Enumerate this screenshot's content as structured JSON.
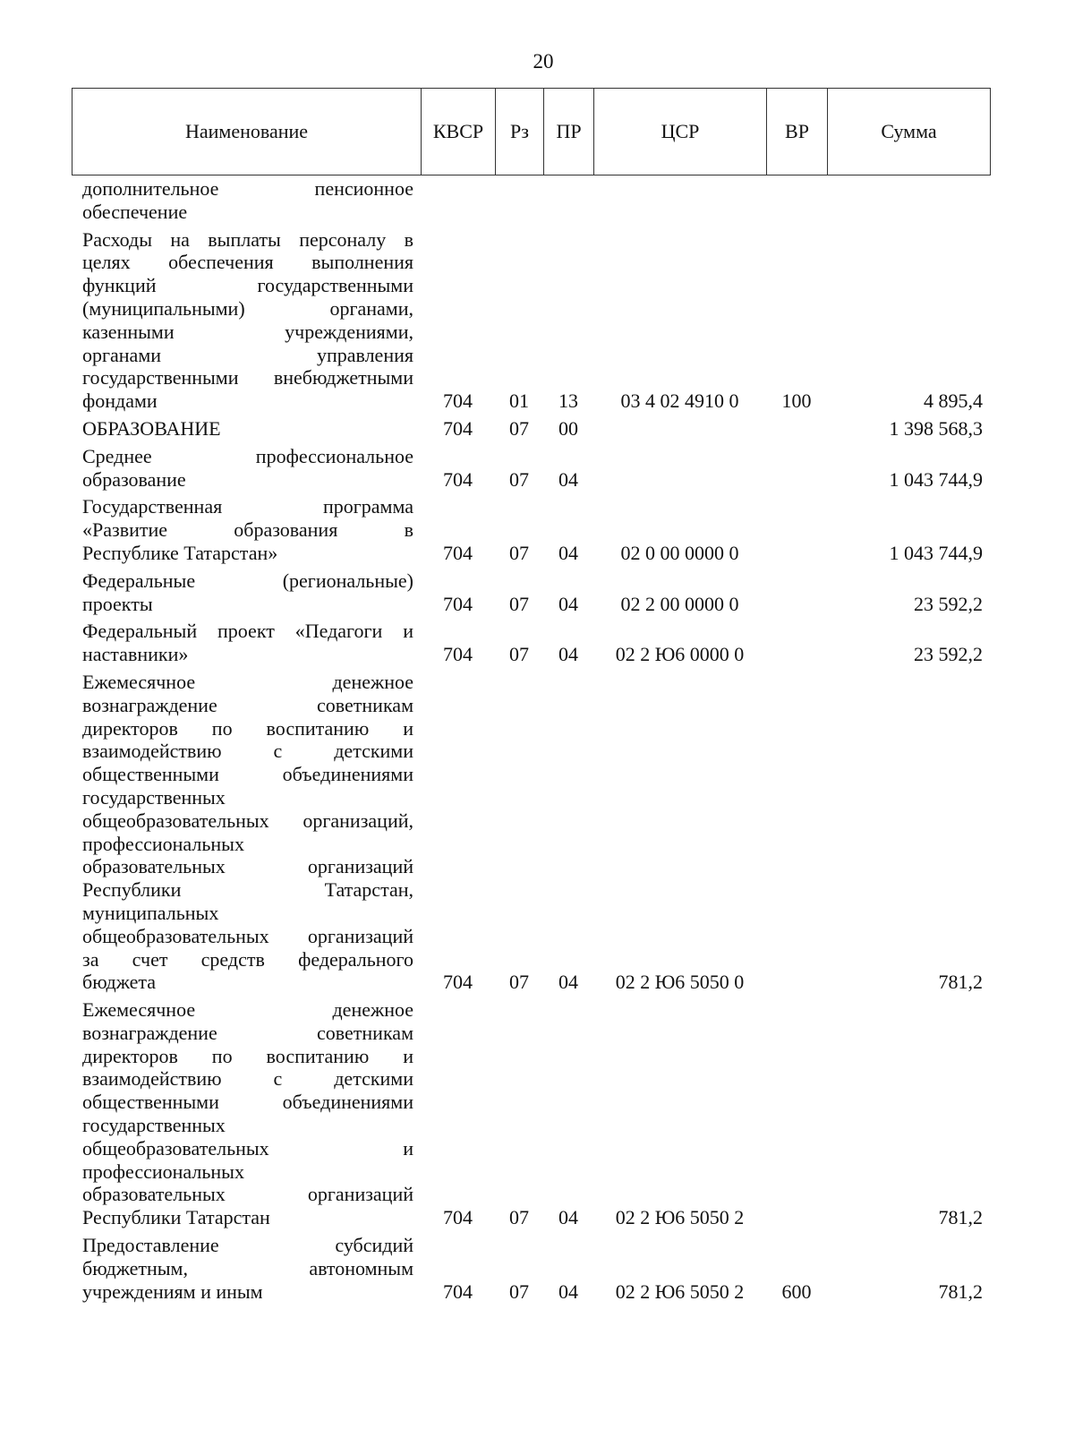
{
  "page_number": "20",
  "headers": [
    "Наименование",
    "КВСР",
    "Рз",
    "ПР",
    "ЦСР",
    "ВР",
    "Сумма"
  ],
  "rows": [
    {
      "lines": [
        "дополнительное пенсионное",
        "обеспечение"
      ],
      "kvsr": "",
      "rz": "",
      "pr": "",
      "csr": "",
      "vr": "",
      "sum": ""
    },
    {
      "lines": [
        "Расходы на выплаты персоналу в",
        "целях обеспечения выполнения",
        "функций государственными",
        "(муниципальными) органами,",
        "казенными учреждениями,",
        "органами управления",
        "государственными внебюджетными",
        "фондами"
      ],
      "kvsr": "704",
      "rz": "01",
      "pr": "13",
      "csr": "03 4 02 4910 0",
      "vr": "100",
      "sum": "4 895,4"
    },
    {
      "lines": [
        "ОБРАЗОВАНИЕ"
      ],
      "kvsr": "704",
      "rz": "07",
      "pr": "00",
      "csr": "",
      "vr": "",
      "sum": "1 398 568,3"
    },
    {
      "lines": [
        "Среднее профессиональное",
        "образование"
      ],
      "kvsr": "704",
      "rz": "07",
      "pr": "04",
      "csr": "",
      "vr": "",
      "sum": "1 043 744,9"
    },
    {
      "lines": [
        "Государственная программа",
        "«Развитие образования в",
        "Республике Татарстан»"
      ],
      "kvsr": "704",
      "rz": "07",
      "pr": "04",
      "csr": "02 0 00 0000 0",
      "vr": "",
      "sum": "1 043 744,9"
    },
    {
      "lines": [
        "Федеральные (региональные)",
        "проекты"
      ],
      "kvsr": "704",
      "rz": "07",
      "pr": "04",
      "csr": "02 2 00 0000 0",
      "vr": "",
      "sum": "23 592,2"
    },
    {
      "lines": [
        "Федеральный проект «Педагоги и",
        "наставники»"
      ],
      "kvsr": "704",
      "rz": "07",
      "pr": "04",
      "csr": "02 2 Ю6 0000 0",
      "vr": "",
      "sum": "23 592,2"
    },
    {
      "lines": [
        "Ежемесячное денежное",
        "вознаграждение советникам",
        "директоров по воспитанию и",
        "взаимодействию с детскими",
        "общественными объединениями",
        "государственных",
        "общеобразовательных организаций,",
        "профессиональных",
        "образовательных организаций",
        "Республики Татарстан,",
        "муниципальных",
        "общеобразовательных организаций",
        "за счет средств федерального",
        "бюджета"
      ],
      "kvsr": "704",
      "rz": "07",
      "pr": "04",
      "csr": "02 2 Ю6 5050 0",
      "vr": "",
      "sum": "781,2"
    },
    {
      "lines": [
        "Ежемесячное денежное",
        "вознаграждение советникам",
        "директоров по воспитанию и",
        "взаимодействию с детскими",
        "общественными объединениями",
        "государственных",
        "общеобразовательных и",
        "профессиональных",
        "образовательных организаций",
        "Республики Татарстан"
      ],
      "kvsr": "704",
      "rz": "07",
      "pr": "04",
      "csr": "02 2 Ю6 5050 2",
      "vr": "",
      "sum": "781,2"
    },
    {
      "lines": [
        "Предоставление субсидий",
        "бюджетным, автономным",
        "учреждениям и иным"
      ],
      "kvsr": "704",
      "rz": "07",
      "pr": "04",
      "csr": "02 2 Ю6 5050 2",
      "vr": "600",
      "sum": "781,2"
    }
  ]
}
